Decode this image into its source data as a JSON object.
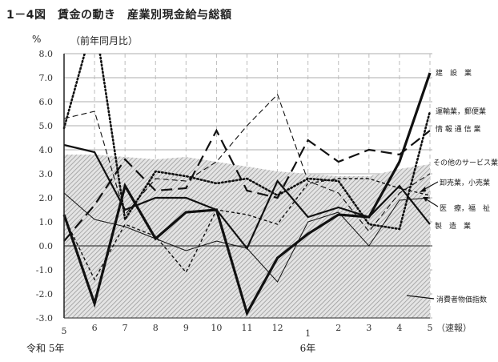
{
  "header": {
    "title": "1－4図　賃金の動き　産業別現金給与総額",
    "unit": "%",
    "subtitle": "（前年同月比）"
  },
  "axis": {
    "era_labels": [
      {
        "label": "令和 5年",
        "anchor_index": 0
      },
      {
        "label": "6年",
        "anchor_index": 8
      }
    ]
  },
  "chart_data": {
    "type": "line",
    "title": "1－4図 賃金の動き 産業別現金給与総額",
    "subtitle": "（前年同月比）",
    "xlabel": "",
    "ylabel": "%",
    "ylim": [
      -3.0,
      8.0
    ],
    "yticks": [
      "8.0",
      "7.0",
      "6.0",
      "5.0",
      "4.0",
      "3.0",
      "2.0",
      "1.0",
      "0.0",
      "-1.0",
      "-2.0",
      "-3.0"
    ],
    "grid": true,
    "categories": [
      "5",
      "6",
      "7",
      "8",
      "9",
      "10",
      "11",
      "12",
      "1",
      "2",
      "3",
      "4",
      "5"
    ],
    "category_suffix_last": "（速報）",
    "series": [
      {
        "name": "建設業",
        "style": "thick-solid",
        "values": [
          1.3,
          -2.4,
          2.5,
          0.3,
          1.4,
          1.5,
          -2.8,
          -0.5,
          0.5,
          1.3,
          1.2,
          3.5,
          7.2
        ]
      },
      {
        "name": "運輸業，郵便業",
        "style": "dotted",
        "values": [
          4.9,
          9.5,
          1.1,
          3.1,
          2.9,
          2.6,
          2.8,
          2.1,
          2.8,
          2.7,
          0.9,
          0.7,
          5.6
        ]
      },
      {
        "name": "情報通信業",
        "style": "long-dash",
        "values": [
          0.2,
          1.7,
          3.6,
          2.3,
          2.4,
          4.8,
          2.3,
          2.0,
          4.4,
          3.5,
          4.0,
          3.8,
          4.8
        ]
      },
      {
        "name": "その他のサービス業",
        "style": "medium-dash",
        "values": [
          5.3,
          5.6,
          1.3,
          2.8,
          2.7,
          3.5,
          5.0,
          6.3,
          2.7,
          2.2,
          0.6,
          2.2,
          3.0
        ]
      },
      {
        "name": "卸売業，小売業",
        "style": "short-dash",
        "values": [
          1.2,
          -1.4,
          0.9,
          0.4,
          -1.1,
          1.5,
          1.3,
          0.9,
          2.6,
          2.8,
          2.8,
          2.4,
          2.1
        ]
      },
      {
        "name": "医療，福祉",
        "style": "thin-solid",
        "values": [
          2.2,
          1.1,
          0.8,
          0.3,
          -0.2,
          0.2,
          -0.1,
          -1.5,
          1.0,
          1.4,
          0.0,
          1.9,
          2.0
        ]
      },
      {
        "name": "製造業",
        "style": "medium-solid",
        "values": [
          4.2,
          3.9,
          1.5,
          2.0,
          2.0,
          1.5,
          -0.1,
          2.7,
          1.2,
          1.6,
          1.2,
          2.5,
          0.9
        ]
      },
      {
        "name": "消費者物価指数",
        "style": "hatched-area",
        "values": [
          3.8,
          3.8,
          3.7,
          3.6,
          3.7,
          3.5,
          3.3,
          3.1,
          3.0,
          2.9,
          2.9,
          3.2,
          3.4
        ]
      }
    ],
    "legend": {
      "position": "right, inline labels",
      "entries": [
        "建　設　業",
        "運輸業，郵便業",
        "情 報 通 信 業",
        "その他のサービス業",
        "卸売業，小売業",
        "医　療，福　祉",
        "製　造　業",
        "消費者物価指数"
      ]
    }
  }
}
